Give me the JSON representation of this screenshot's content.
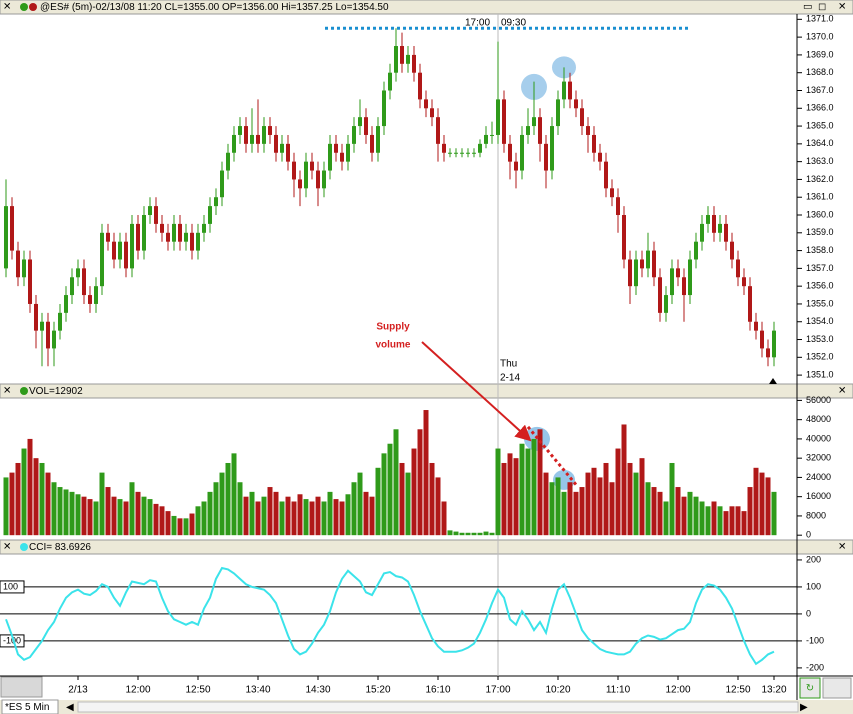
{
  "chart_data": [
    {
      "type": "candlestick",
      "title": "@ES# (5m)-02/13/08 11:20 CL=1355.00 OP=1356.00 Hi=1357.25 Lo=1354.50",
      "annotations": [
        "17:00",
        "09:30",
        "Thu",
        "2-14",
        "Supply",
        "volume"
      ],
      "categories": [
        null,
        null,
        null,
        null,
        null,
        null,
        null,
        null,
        null,
        null,
        null,
        null,
        "2/13",
        null,
        null,
        null,
        null,
        null,
        null,
        null,
        null,
        null,
        "12:00",
        null,
        null,
        null,
        null,
        null,
        null,
        null,
        null,
        null,
        "12:50",
        null,
        null,
        null,
        null,
        null,
        null,
        null,
        null,
        null,
        "13:40",
        null,
        null,
        null,
        null,
        null,
        null,
        null,
        null,
        null,
        "14:30",
        null,
        null,
        null,
        null,
        null,
        null,
        null,
        null,
        null,
        "15:20",
        null,
        null,
        null,
        null,
        null,
        null,
        null,
        null,
        null,
        "16:10",
        null,
        null,
        null,
        null,
        null,
        null,
        null,
        null,
        null,
        "17:00",
        null,
        null,
        null,
        null,
        null,
        null,
        null,
        null,
        null,
        "10:20",
        null,
        null,
        null,
        null,
        null,
        null,
        null,
        null,
        null,
        "11:10",
        null,
        null,
        null,
        null,
        null,
        null,
        null,
        null,
        null,
        "12:00",
        null,
        null,
        null,
        null,
        null,
        null,
        null,
        null,
        null,
        "12:50",
        null,
        null,
        null,
        null,
        null,
        "13:20"
      ],
      "open": [
        1357,
        1360.5,
        1358,
        1356.5,
        1357.5,
        1355,
        1353.5,
        1354,
        1352.5,
        1353.5,
        1354.5,
        1355.5,
        1356.5,
        1357,
        1355.5,
        1355,
        1356,
        1359,
        1358.5,
        1357.5,
        1358.5,
        1357,
        1359.5,
        1358,
        1360,
        1360.5,
        1359.5,
        1359,
        1358.5,
        1359.5,
        1358.5,
        1359,
        1358,
        1359,
        1359.5,
        1360.5,
        1361,
        1362.5,
        1363.5,
        1364.5,
        1365,
        1364,
        1364.5,
        1364,
        1365,
        1364.5,
        1363.5,
        1364,
        1363,
        1362,
        1361.5,
        1363,
        1362.5,
        1361.5,
        1362.5,
        1364,
        1363.5,
        1363,
        1364,
        1365,
        1365.5,
        1364.5,
        1363.5,
        1365,
        1367,
        1368,
        1369.5,
        1368.5,
        1369,
        1368,
        1366.5,
        1366,
        1365.5,
        1364,
        1363.5,
        1363.5,
        1363.5,
        1363.5,
        1363.5,
        1363.5,
        1364,
        1364.5,
        1364.5,
        1366.5,
        1364,
        1363,
        1362.5,
        1364.5,
        1365,
        1365.5,
        1364,
        1362.5,
        1365,
        1366.5,
        1367.5,
        1366.5,
        1366,
        1365,
        1364.5,
        1363.5,
        1363,
        1361.5,
        1361,
        1360,
        1357.5,
        1356,
        1357.5,
        1357,
        1358,
        1356.5,
        1354.5,
        1355.5,
        1357,
        1356.5,
        1355.5,
        1357.5,
        1358.5,
        1359.5,
        1360,
        1359,
        1359.5,
        1358.5,
        1357.5,
        1356.5,
        1356,
        1354,
        1353.5,
        1352.5,
        1352
      ],
      "high": [
        1362,
        1361,
        1358.5,
        1358,
        1358,
        1355.5,
        1354.5,
        1354.5,
        1354,
        1355,
        1356,
        1357,
        1357.5,
        1357.5,
        1356,
        1356.5,
        1359.5,
        1359.5,
        1359,
        1359,
        1359,
        1360,
        1360,
        1360.5,
        1361,
        1361,
        1360,
        1359.5,
        1360,
        1360,
        1359.5,
        1359.5,
        1359.5,
        1360,
        1361,
        1361.5,
        1363,
        1364,
        1365,
        1365.5,
        1365.5,
        1366,
        1366.5,
        1365.5,
        1365.5,
        1365,
        1364.5,
        1364.5,
        1363.5,
        1362.5,
        1363.5,
        1363.5,
        1363,
        1363,
        1364.5,
        1364.5,
        1364,
        1364.5,
        1365.5,
        1366.5,
        1366,
        1365,
        1365.5,
        1367.5,
        1368.5,
        1370.5,
        1370.25,
        1369.5,
        1369.5,
        1368.5,
        1367,
        1366.5,
        1366,
        1364.5,
        1363.75,
        1363.75,
        1363.75,
        1363.75,
        1363.75,
        1364.25,
        1365,
        1365.25,
        1369.75,
        1367,
        1364.5,
        1363.5,
        1365,
        1366,
        1367.5,
        1366,
        1364.5,
        1365.5,
        1367,
        1368.3,
        1368,
        1367,
        1366.5,
        1365.5,
        1365,
        1364,
        1363.5,
        1362,
        1361.5,
        1360.5,
        1358,
        1358,
        1358,
        1359,
        1358.5,
        1357,
        1356,
        1357.5,
        1357.5,
        1357,
        1358,
        1359,
        1360,
        1360.5,
        1360.5,
        1360,
        1360,
        1359,
        1358,
        1357,
        1356.5,
        1354.5,
        1354,
        1353,
        1354
      ],
      "low": [
        1356.5,
        1357.5,
        1356,
        1356,
        1354.5,
        1352.5,
        1351.5,
        1351.5,
        1351.5,
        1353,
        1354,
        1355,
        1356,
        1355,
        1354.5,
        1354.5,
        1355.5,
        1358,
        1357,
        1357,
        1356.5,
        1356.5,
        1357.5,
        1357.5,
        1359.5,
        1359,
        1358.5,
        1358,
        1358,
        1358,
        1358,
        1357.5,
        1357.5,
        1358.5,
        1359,
        1360,
        1360.5,
        1362,
        1363,
        1364,
        1363.5,
        1363.5,
        1363.5,
        1363.5,
        1364,
        1363,
        1363,
        1362.5,
        1361,
        1360.5,
        1361,
        1362,
        1360.5,
        1361,
        1362,
        1363,
        1362.5,
        1362.5,
        1363.5,
        1364.5,
        1364,
        1363,
        1363,
        1364.5,
        1366.5,
        1367.5,
        1368,
        1368,
        1367.5,
        1366,
        1365.5,
        1365,
        1363,
        1363,
        1363.25,
        1363.25,
        1363.25,
        1363.25,
        1363.25,
        1363.25,
        1363.75,
        1364,
        1364,
        1363.5,
        1362,
        1361.5,
        1362,
        1364,
        1364.5,
        1363,
        1361.5,
        1362,
        1364.5,
        1366,
        1366,
        1365.5,
        1364.5,
        1363.5,
        1363,
        1362.5,
        1361,
        1360.5,
        1359,
        1357,
        1355,
        1355.5,
        1356.5,
        1356.5,
        1356,
        1354,
        1354,
        1355,
        1356,
        1354,
        1355,
        1357,
        1358,
        1359,
        1358.5,
        1358.5,
        1358,
        1357,
        1356,
        1355.5,
        1353.5,
        1353,
        1352,
        1351.5,
        1351.5
      ],
      "close": [
        1360.5,
        1358,
        1356.5,
        1357.5,
        1355,
        1353.5,
        1354,
        1352.5,
        1353.5,
        1354.5,
        1355.5,
        1356.5,
        1357,
        1355.5,
        1355,
        1356,
        1359,
        1358.5,
        1357.5,
        1358.5,
        1357,
        1359.5,
        1358,
        1360,
        1360.5,
        1359.5,
        1359,
        1358.5,
        1359.5,
        1358.5,
        1359,
        1358,
        1359,
        1359.5,
        1360.5,
        1361,
        1362.5,
        1363.5,
        1364.5,
        1365,
        1364,
        1364.5,
        1364,
        1365,
        1364.5,
        1363.5,
        1364,
        1363,
        1362,
        1361.5,
        1363,
        1362.5,
        1361.5,
        1362.5,
        1364,
        1363.5,
        1363,
        1364,
        1365,
        1365.5,
        1364.5,
        1363.5,
        1365,
        1367,
        1368,
        1369.5,
        1368.5,
        1369,
        1368,
        1366.5,
        1366,
        1365.5,
        1364,
        1363.5,
        1363.5,
        1363.5,
        1363.5,
        1363.5,
        1363.5,
        1364,
        1364.5,
        1364.5,
        1366.5,
        1364,
        1363,
        1362.5,
        1364.5,
        1365,
        1365.5,
        1364,
        1362.5,
        1365,
        1366.5,
        1367.5,
        1366.5,
        1366,
        1365,
        1364.5,
        1363.5,
        1363,
        1361.5,
        1361,
        1360,
        1357.5,
        1356,
        1357.5,
        1357,
        1358,
        1356.5,
        1354.5,
        1355.5,
        1357,
        1356.5,
        1355.5,
        1357.5,
        1358.5,
        1359.5,
        1360,
        1359,
        1359.5,
        1358.5,
        1357.5,
        1356.5,
        1356,
        1354,
        1353.5,
        1352.5,
        1352,
        1353.5
      ],
      "up_color": "#2f9a1a",
      "down_color": "#b01818",
      "hline": 1370.5,
      "hline_color": "#1a8fd0",
      "ylim": [
        1350.5,
        1371.3
      ],
      "yticks": [
        {
          "value": 1351,
          "label": "1351.0"
        },
        {
          "value": 1352,
          "label": "1352.0"
        },
        {
          "value": 1353,
          "label": "1353.0"
        },
        {
          "value": 1354,
          "label": "1354.0"
        },
        {
          "value": 1355,
          "label": "1355.0"
        },
        {
          "value": 1356,
          "label": "1356.0"
        },
        {
          "value": 1357,
          "label": "1357.0"
        },
        {
          "value": 1358,
          "label": "1358.0"
        },
        {
          "value": 1359,
          "label": "1359.0"
        },
        {
          "value": 1360,
          "label": "1360.0"
        },
        {
          "value": 1361,
          "label": "1361.0"
        },
        {
          "value": 1362,
          "label": "1362.0"
        },
        {
          "value": 1363,
          "label": "1363.0"
        },
        {
          "value": 1364,
          "label": "1364.0"
        },
        {
          "value": 1365,
          "label": "1365.0"
        },
        {
          "value": 1366,
          "label": "1366.0"
        },
        {
          "value": 1367,
          "label": "1367.0"
        },
        {
          "value": 1368,
          "label": "1368.0"
        },
        {
          "value": 1369,
          "label": "1369.0"
        },
        {
          "value": 1370,
          "label": "1370.0"
        },
        {
          "value": 1371,
          "label": "1371.0"
        }
      ]
    },
    {
      "type": "bar",
      "title": "VOL=12902",
      "values": [
        24000,
        26000,
        30000,
        36000,
        40000,
        32000,
        30000,
        26000,
        22000,
        20000,
        19000,
        18000,
        17000,
        16000,
        15000,
        14000,
        26000,
        20000,
        16000,
        15000,
        14000,
        22000,
        18000,
        16000,
        15000,
        13000,
        12000,
        10000,
        8000,
        7000,
        7000,
        9000,
        12000,
        14000,
        18000,
        22000,
        26000,
        30000,
        34000,
        22000,
        16000,
        18000,
        14000,
        16000,
        20000,
        18000,
        14000,
        16000,
        14000,
        17000,
        15000,
        14000,
        16000,
        14000,
        18000,
        15000,
        14000,
        17000,
        22000,
        26000,
        18000,
        16000,
        28000,
        34000,
        38000,
        44000,
        30000,
        26000,
        36000,
        44000,
        52000,
        30000,
        24000,
        14000,
        2000,
        1500,
        1000,
        1000,
        1000,
        1000,
        1500,
        1000,
        36000,
        30000,
        34000,
        32000,
        38000,
        36000,
        40000,
        44000,
        26000,
        22000,
        24000,
        18000,
        22000,
        18000,
        20000,
        26000,
        28000,
        24000,
        30000,
        22000,
        36000,
        46000,
        30000,
        26000,
        32000,
        22000,
        20000,
        18000,
        14000,
        30000,
        20000,
        16000,
        18000,
        16000,
        14000,
        12000,
        14000,
        12000,
        10000,
        12000,
        12000,
        10000,
        20000,
        28000,
        26000,
        24000,
        18000
      ],
      "ylim": [
        -2000,
        57000
      ],
      "yticks": [
        0,
        8000,
        16000,
        24000,
        32000,
        40000,
        48000,
        56000
      ]
    },
    {
      "type": "line",
      "title": "CCI= 83.6926",
      "values": [
        -20,
        -80,
        -150,
        -170,
        -160,
        -130,
        -100,
        -60,
        -30,
        20,
        60,
        80,
        90,
        75,
        70,
        85,
        110,
        100,
        60,
        30,
        80,
        120,
        115,
        110,
        125,
        120,
        60,
        10,
        -20,
        -30,
        -40,
        -30,
        -40,
        20,
        60,
        130,
        170,
        165,
        150,
        130,
        110,
        100,
        95,
        90,
        70,
        40,
        -20,
        -80,
        -130,
        -150,
        -140,
        -110,
        -70,
        -40,
        10,
        80,
        130,
        160,
        140,
        120,
        80,
        70,
        110,
        150,
        155,
        140,
        135,
        120,
        70,
        10,
        -40,
        -90,
        -120,
        -140,
        -140,
        -140,
        -135,
        -125,
        -110,
        -70,
        -20,
        40,
        90,
        60,
        -20,
        -40,
        10,
        -20,
        -60,
        -30,
        -70,
        20,
        90,
        110,
        60,
        0,
        -60,
        -90,
        -110,
        -130,
        -140,
        -145,
        -150,
        -150,
        -140,
        -110,
        -90,
        -80,
        -85,
        -95,
        -90,
        -75,
        -60,
        -55,
        -30,
        40,
        90,
        110,
        105,
        90,
        60,
        20,
        -40,
        -100,
        -150,
        -185,
        -170,
        -150,
        -140
      ],
      "color": "#3be3ea",
      "levels": [
        100,
        -100
      ],
      "ylim": [
        -230,
        222
      ],
      "yticks": [
        200,
        100,
        0,
        -100,
        -200
      ]
    }
  ],
  "tab": "*ES 5 Min"
}
